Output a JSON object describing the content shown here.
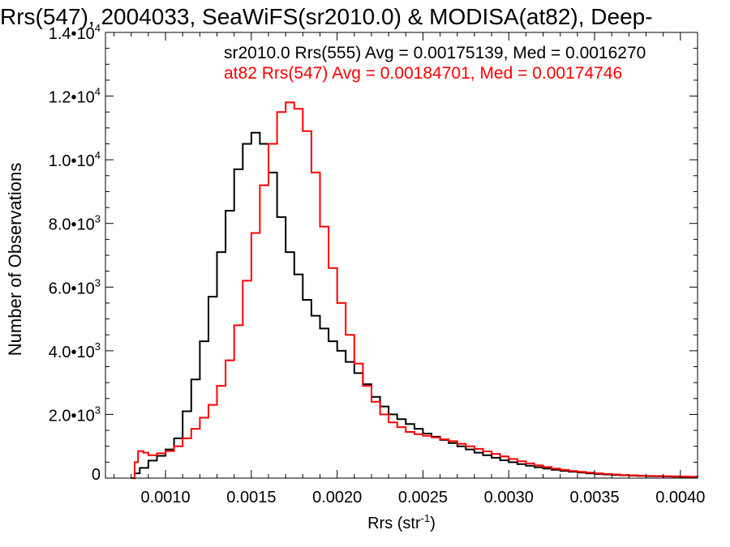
{
  "chart_data": {
    "type": "line",
    "title": "Rrs(547), 2004033, SeaWiFS(sr2010.0) & MODISA(at82), Deep-",
    "xlabel": "Rrs (str",
    "xlabel_sup": "-1",
    "xlabel_close": ")",
    "ylabel": "Number of Observations",
    "xlim": [
      0.00065,
      0.0041
    ],
    "ylim": [
      0,
      14000
    ],
    "x_ticks": [
      {
        "value": 0.001,
        "label": "0.0010"
      },
      {
        "value": 0.0015,
        "label": "0.0015"
      },
      {
        "value": 0.002,
        "label": "0.0020"
      },
      {
        "value": 0.0025,
        "label": "0.0025"
      },
      {
        "value": 0.003,
        "label": "0.0030"
      },
      {
        "value": 0.0035,
        "label": "0.0035"
      },
      {
        "value": 0.004,
        "label": "0.0040"
      }
    ],
    "y_ticks": [
      {
        "value": 0,
        "mant": "0",
        "exp": ""
      },
      {
        "value": 2000,
        "mant": "2.0•10",
        "exp": "3"
      },
      {
        "value": 4000,
        "mant": "4.0•10",
        "exp": "3"
      },
      {
        "value": 6000,
        "mant": "6.0•10",
        "exp": "3"
      },
      {
        "value": 8000,
        "mant": "8.0•10",
        "exp": "3"
      },
      {
        "value": 10000,
        "mant": "1.0•10",
        "exp": "4"
      },
      {
        "value": 12000,
        "mant": "1.2•10",
        "exp": "4"
      },
      {
        "value": 14000,
        "mant": "1.4•10",
        "exp": "4"
      }
    ],
    "legend": [
      {
        "text": "sr2010.0 Rrs(555) Avg = 0.00175139, Med = 0.0016270",
        "color": "#000000"
      },
      {
        "text": "at82 Rrs(547) Avg = 0.00184701, Med = 0.00174746",
        "color": "#ff0000"
      }
    ],
    "series": [
      {
        "name": "sr2010.0 Rrs(555)",
        "color": "#000000",
        "points": [
          [
            0.0008,
            0
          ],
          [
            0.00082,
            150
          ],
          [
            0.00085,
            320
          ],
          [
            0.0009,
            550
          ],
          [
            0.00095,
            700
          ],
          [
            0.001,
            900
          ],
          [
            0.00105,
            1250
          ],
          [
            0.0011,
            2100
          ],
          [
            0.00115,
            3100
          ],
          [
            0.0012,
            4300
          ],
          [
            0.00125,
            5700
          ],
          [
            0.0013,
            7100
          ],
          [
            0.00135,
            8400
          ],
          [
            0.0014,
            9700
          ],
          [
            0.00145,
            10500
          ],
          [
            0.0015,
            10850
          ],
          [
            0.00155,
            10500
          ],
          [
            0.0016,
            9600
          ],
          [
            0.00165,
            8200
          ],
          [
            0.0017,
            7100
          ],
          [
            0.00175,
            6400
          ],
          [
            0.0018,
            5600
          ],
          [
            0.00185,
            5100
          ],
          [
            0.0019,
            4700
          ],
          [
            0.00195,
            4300
          ],
          [
            0.002,
            4000
          ],
          [
            0.00205,
            3650
          ],
          [
            0.0021,
            3300
          ],
          [
            0.00215,
            2950
          ],
          [
            0.0022,
            2550
          ],
          [
            0.00225,
            2250
          ],
          [
            0.0023,
            2000
          ],
          [
            0.00235,
            1850
          ],
          [
            0.0024,
            1700
          ],
          [
            0.00245,
            1550
          ],
          [
            0.0025,
            1400
          ],
          [
            0.00255,
            1300
          ],
          [
            0.0026,
            1200
          ],
          [
            0.00265,
            1100
          ],
          [
            0.0027,
            1000
          ],
          [
            0.00275,
            900
          ],
          [
            0.0028,
            800
          ],
          [
            0.00285,
            720
          ],
          [
            0.0029,
            640
          ],
          [
            0.00295,
            560
          ],
          [
            0.003,
            500
          ],
          [
            0.00305,
            440
          ],
          [
            0.0031,
            390
          ],
          [
            0.00315,
            340
          ],
          [
            0.0032,
            300
          ],
          [
            0.00325,
            260
          ],
          [
            0.0033,
            230
          ],
          [
            0.00335,
            200
          ],
          [
            0.0034,
            175
          ],
          [
            0.00345,
            150
          ],
          [
            0.0035,
            130
          ],
          [
            0.00355,
            115
          ],
          [
            0.0036,
            100
          ],
          [
            0.00365,
            90
          ],
          [
            0.0037,
            80
          ],
          [
            0.00375,
            70
          ],
          [
            0.0038,
            60
          ],
          [
            0.00385,
            55
          ],
          [
            0.0039,
            50
          ],
          [
            0.00395,
            45
          ],
          [
            0.004,
            40
          ],
          [
            0.00405,
            35
          ],
          [
            0.0041,
            30
          ]
        ]
      },
      {
        "name": "at82 Rrs(547)",
        "color": "#ff0000",
        "points": [
          [
            0.0008,
            0
          ],
          [
            0.00082,
            500
          ],
          [
            0.00084,
            850
          ],
          [
            0.00087,
            800
          ],
          [
            0.0009,
            720
          ],
          [
            0.00095,
            780
          ],
          [
            0.001,
            850
          ],
          [
            0.00105,
            1000
          ],
          [
            0.0011,
            1250
          ],
          [
            0.00115,
            1550
          ],
          [
            0.0012,
            1900
          ],
          [
            0.00125,
            2300
          ],
          [
            0.0013,
            2900
          ],
          [
            0.00135,
            3700
          ],
          [
            0.0014,
            4800
          ],
          [
            0.00145,
            6200
          ],
          [
            0.0015,
            7700
          ],
          [
            0.00155,
            9200
          ],
          [
            0.0016,
            10500
          ],
          [
            0.00165,
            11500
          ],
          [
            0.0017,
            11800
          ],
          [
            0.00175,
            11600
          ],
          [
            0.0018,
            10900
          ],
          [
            0.00185,
            9600
          ],
          [
            0.0019,
            7900
          ],
          [
            0.00195,
            6600
          ],
          [
            0.002,
            5500
          ],
          [
            0.00205,
            4500
          ],
          [
            0.0021,
            3600
          ],
          [
            0.00215,
            2900
          ],
          [
            0.0022,
            2400
          ],
          [
            0.00225,
            2000
          ],
          [
            0.0023,
            1750
          ],
          [
            0.00235,
            1600
          ],
          [
            0.0024,
            1450
          ],
          [
            0.00245,
            1380
          ],
          [
            0.0025,
            1330
          ],
          [
            0.00255,
            1280
          ],
          [
            0.0026,
            1220
          ],
          [
            0.00265,
            1160
          ],
          [
            0.0027,
            1080
          ],
          [
            0.00275,
            1000
          ],
          [
            0.0028,
            920
          ],
          [
            0.00285,
            840
          ],
          [
            0.0029,
            760
          ],
          [
            0.00295,
            680
          ],
          [
            0.003,
            600
          ],
          [
            0.00305,
            530
          ],
          [
            0.0031,
            460
          ],
          [
            0.00315,
            400
          ],
          [
            0.0032,
            350
          ],
          [
            0.00325,
            300
          ],
          [
            0.0033,
            260
          ],
          [
            0.00335,
            225
          ],
          [
            0.0034,
            195
          ],
          [
            0.00345,
            170
          ],
          [
            0.0035,
            150
          ],
          [
            0.00355,
            130
          ],
          [
            0.0036,
            115
          ],
          [
            0.00365,
            100
          ],
          [
            0.0037,
            90
          ],
          [
            0.00375,
            80
          ],
          [
            0.0038,
            70
          ],
          [
            0.00385,
            65
          ],
          [
            0.0039,
            60
          ],
          [
            0.00395,
            55
          ],
          [
            0.004,
            50
          ],
          [
            0.00405,
            45
          ],
          [
            0.0041,
            40
          ]
        ]
      }
    ]
  }
}
